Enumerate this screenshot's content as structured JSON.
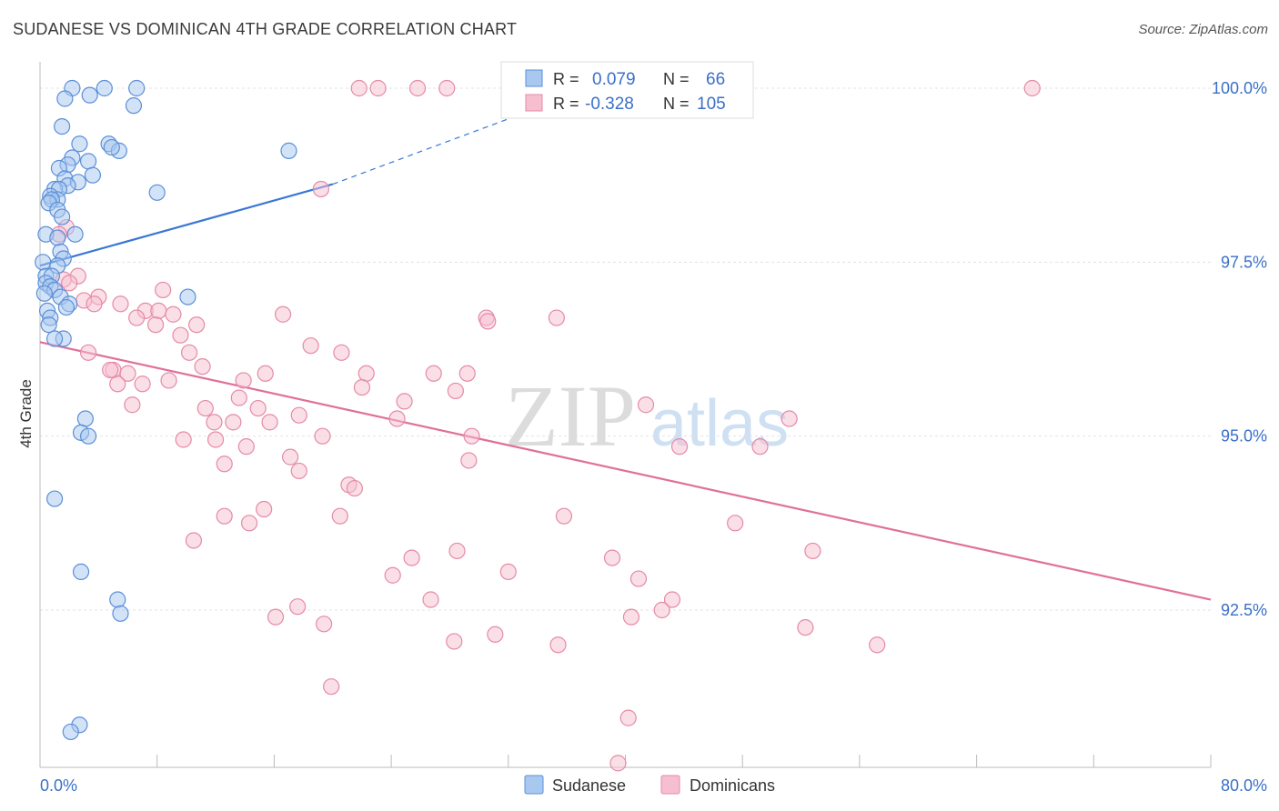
{
  "title": "SUDANESE VS DOMINICAN 4TH GRADE CORRELATION CHART",
  "source": "Source: ZipAtlas.com",
  "watermark": {
    "zip": "ZIP",
    "atlas": "atlas"
  },
  "colors": {
    "sudanese_fill": "#a8c8f0",
    "sudanese_stroke": "#5b8fd8",
    "sudanese_line": "#3a78d4",
    "dominican_fill": "#f6bfd0",
    "dominican_stroke": "#e58aa8",
    "dominican_line": "#e0709a",
    "axis_text_blue": "#3a6fc8",
    "grid": "#e3e3e3"
  },
  "legend_box": {
    "rows": [
      {
        "r_label": "R =",
        "r_value": "0.079",
        "n_label": "N =",
        "n_value": "66"
      },
      {
        "r_label": "R =",
        "r_value": "-0.328",
        "n_label": "N =",
        "n_value": "105"
      }
    ]
  },
  "chart_data": {
    "type": "scatter",
    "xlabel": "",
    "ylabel": "4th Grade",
    "xlim": [
      0,
      80
    ],
    "ylim": [
      90.0,
      100.25
    ],
    "x_tick_labels": [
      "0.0%",
      "80.0%"
    ],
    "y_ticks": [
      92.5,
      95.0,
      97.5,
      100.0
    ],
    "y_tick_labels": [
      "92.5%",
      "95.0%",
      "97.5%",
      "100.0%"
    ],
    "grid": true,
    "legend_placement": "bottom-center",
    "series": [
      {
        "name": "Sudanese",
        "r": 0.079,
        "n": 66,
        "trend": {
          "x0": 0.0,
          "y0": 97.45,
          "x1": 20.0,
          "y1": 98.62,
          "dashed_to_x": 37.0,
          "dashed_to_y": 99.95
        },
        "points": [
          [
            2.2,
            100.0
          ],
          [
            4.4,
            100.0
          ],
          [
            6.6,
            100.0
          ],
          [
            3.4,
            99.9
          ],
          [
            1.7,
            99.85
          ],
          [
            6.4,
            99.75
          ],
          [
            1.5,
            99.45
          ],
          [
            2.7,
            99.2
          ],
          [
            4.7,
            99.2
          ],
          [
            5.4,
            99.1
          ],
          [
            4.9,
            99.15
          ],
          [
            17.0,
            99.1
          ],
          [
            2.2,
            99.0
          ],
          [
            3.3,
            98.95
          ],
          [
            1.9,
            98.9
          ],
          [
            1.3,
            98.85
          ],
          [
            3.6,
            98.75
          ],
          [
            1.7,
            98.7
          ],
          [
            2.6,
            98.65
          ],
          [
            1.9,
            98.6
          ],
          [
            1.0,
            98.55
          ],
          [
            1.3,
            98.55
          ],
          [
            8.0,
            98.5
          ],
          [
            0.7,
            98.45
          ],
          [
            1.2,
            98.4
          ],
          [
            0.8,
            98.4
          ],
          [
            0.6,
            98.35
          ],
          [
            1.2,
            98.25
          ],
          [
            1.5,
            98.15
          ],
          [
            2.4,
            97.9
          ],
          [
            0.4,
            97.9
          ],
          [
            1.2,
            97.85
          ],
          [
            1.4,
            97.65
          ],
          [
            1.6,
            97.55
          ],
          [
            0.2,
            97.5
          ],
          [
            1.2,
            97.45
          ],
          [
            0.4,
            97.3
          ],
          [
            0.8,
            97.3
          ],
          [
            0.4,
            97.2
          ],
          [
            0.7,
            97.15
          ],
          [
            1.0,
            97.1
          ],
          [
            0.3,
            97.05
          ],
          [
            1.4,
            97.0
          ],
          [
            10.1,
            97.0
          ],
          [
            2.0,
            96.9
          ],
          [
            1.8,
            96.85
          ],
          [
            0.5,
            96.8
          ],
          [
            0.7,
            96.7
          ],
          [
            0.6,
            96.6
          ],
          [
            1.6,
            96.4
          ],
          [
            1.0,
            96.4
          ],
          [
            3.1,
            95.25
          ],
          [
            2.8,
            95.05
          ],
          [
            3.3,
            95.0
          ],
          [
            1.0,
            94.1
          ],
          [
            2.8,
            93.05
          ],
          [
            5.3,
            92.65
          ],
          [
            5.5,
            92.45
          ],
          [
            2.7,
            90.85
          ],
          [
            2.1,
            90.75
          ]
        ]
      },
      {
        "name": "Dominicans",
        "r": -0.328,
        "n": 105,
        "trend": {
          "x0": 0.0,
          "y0": 96.35,
          "x1": 80.0,
          "y1": 92.65
        },
        "points": [
          [
            21.8,
            100.0
          ],
          [
            23.1,
            100.0
          ],
          [
            25.8,
            100.0
          ],
          [
            27.8,
            100.0
          ],
          [
            32.8,
            100.0
          ],
          [
            67.8,
            100.0
          ],
          [
            19.2,
            98.55
          ],
          [
            1.8,
            98.0
          ],
          [
            1.3,
            97.9
          ],
          [
            2.6,
            97.3
          ],
          [
            1.6,
            97.25
          ],
          [
            2.0,
            97.2
          ],
          [
            8.4,
            97.1
          ],
          [
            3.0,
            96.95
          ],
          [
            4.0,
            97.0
          ],
          [
            5.5,
            96.9
          ],
          [
            3.7,
            96.9
          ],
          [
            7.2,
            96.8
          ],
          [
            8.1,
            96.8
          ],
          [
            9.1,
            96.75
          ],
          [
            16.6,
            96.75
          ],
          [
            30.5,
            96.7
          ],
          [
            30.6,
            96.65
          ],
          [
            35.3,
            96.7
          ],
          [
            6.6,
            96.7
          ],
          [
            7.9,
            96.6
          ],
          [
            10.7,
            96.6
          ],
          [
            9.6,
            96.45
          ],
          [
            18.5,
            96.3
          ],
          [
            3.3,
            96.2
          ],
          [
            10.2,
            96.2
          ],
          [
            20.6,
            96.2
          ],
          [
            11.1,
            96.0
          ],
          [
            5.0,
            95.95
          ],
          [
            4.8,
            95.95
          ],
          [
            6.0,
            95.9
          ],
          [
            13.9,
            95.8
          ],
          [
            15.4,
            95.9
          ],
          [
            22.3,
            95.9
          ],
          [
            29.2,
            95.9
          ],
          [
            26.9,
            95.9
          ],
          [
            8.8,
            95.8
          ],
          [
            5.3,
            95.75
          ],
          [
            7.0,
            95.75
          ],
          [
            22.0,
            95.7
          ],
          [
            28.4,
            95.65
          ],
          [
            13.6,
            95.55
          ],
          [
            24.9,
            95.5
          ],
          [
            6.3,
            95.45
          ],
          [
            11.3,
            95.4
          ],
          [
            14.9,
            95.4
          ],
          [
            41.4,
            95.45
          ],
          [
            17.7,
            95.3
          ],
          [
            24.4,
            95.25
          ],
          [
            11.9,
            95.2
          ],
          [
            13.2,
            95.2
          ],
          [
            15.7,
            95.2
          ],
          [
            51.2,
            95.25
          ],
          [
            19.3,
            95.0
          ],
          [
            29.5,
            95.0
          ],
          [
            9.8,
            94.95
          ],
          [
            12.0,
            94.95
          ],
          [
            14.1,
            94.85
          ],
          [
            43.7,
            94.85
          ],
          [
            49.2,
            94.85
          ],
          [
            17.1,
            94.7
          ],
          [
            29.3,
            94.65
          ],
          [
            12.6,
            94.6
          ],
          [
            17.7,
            94.5
          ],
          [
            21.1,
            94.3
          ],
          [
            21.5,
            94.25
          ],
          [
            15.3,
            93.95
          ],
          [
            12.6,
            93.85
          ],
          [
            20.5,
            93.85
          ],
          [
            35.8,
            93.85
          ],
          [
            14.3,
            93.75
          ],
          [
            47.5,
            93.75
          ],
          [
            10.5,
            93.5
          ],
          [
            28.5,
            93.35
          ],
          [
            25.4,
            93.25
          ],
          [
            39.1,
            93.25
          ],
          [
            52.8,
            93.35
          ],
          [
            32.0,
            93.05
          ],
          [
            24.1,
            93.0
          ],
          [
            40.9,
            92.95
          ],
          [
            26.7,
            92.65
          ],
          [
            43.2,
            92.65
          ],
          [
            17.6,
            92.55
          ],
          [
            42.5,
            92.5
          ],
          [
            16.1,
            92.4
          ],
          [
            40.4,
            92.4
          ],
          [
            19.4,
            92.3
          ],
          [
            52.3,
            92.25
          ],
          [
            31.1,
            92.15
          ],
          [
            28.3,
            92.05
          ],
          [
            35.4,
            92.0
          ],
          [
            57.2,
            92.0
          ],
          [
            19.9,
            91.4
          ],
          [
            40.2,
            90.95
          ],
          [
            39.5,
            90.3
          ]
        ]
      }
    ]
  }
}
